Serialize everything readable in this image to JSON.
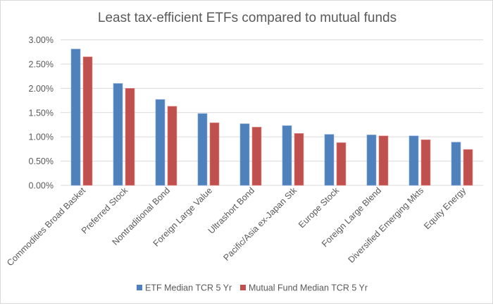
{
  "chart_data": {
    "type": "bar",
    "title": "Least tax-efficient ETFs compared to mutual funds",
    "xlabel": "",
    "ylabel": "",
    "ylim": [
      0,
      3.0
    ],
    "yticks": [
      "0.00%",
      "0.50%",
      "1.00%",
      "1.50%",
      "2.00%",
      "2.50%",
      "3.00%"
    ],
    "grid": true,
    "legend_position": "bottom",
    "categories": [
      "Commodities Broad Basket",
      "Preferred Stock",
      "Nontraditional Bond",
      "Foreign Large Value",
      "Ultrashort Bond",
      "Pacific/Asia ex-Japan Stk",
      "Europe Stock",
      "Foreign Large Blend",
      "Diversified Emerging Mkts",
      "Equity Energy"
    ],
    "series": [
      {
        "name": "ETF Median TCR 5 Yr",
        "color": "#4f81bd",
        "values": [
          2.81,
          2.1,
          1.77,
          1.48,
          1.27,
          1.23,
          1.05,
          1.04,
          1.02,
          0.89
        ]
      },
      {
        "name": "Mutual Fund Median TCR 5 Yr",
        "color": "#c0504d",
        "values": [
          2.65,
          2.0,
          1.63,
          1.29,
          1.2,
          1.07,
          0.88,
          1.02,
          0.94,
          0.74
        ]
      }
    ]
  }
}
